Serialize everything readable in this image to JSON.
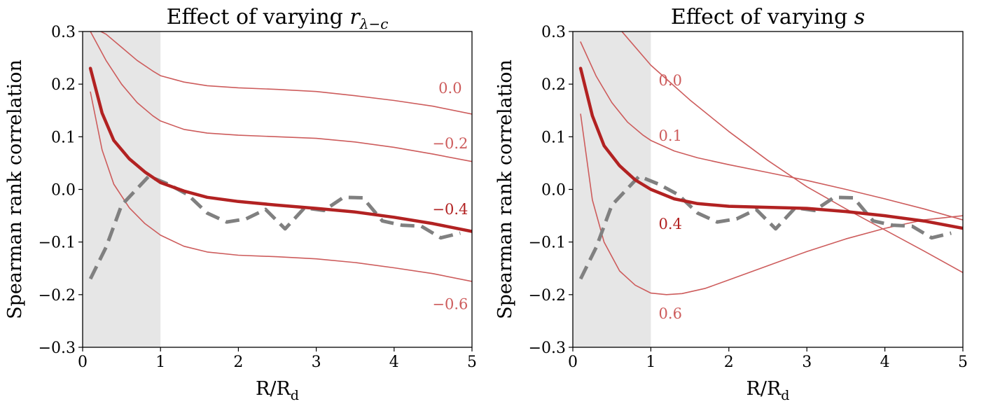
{
  "chart_data": [
    {
      "type": "line",
      "title": "Effect of varying r_{λ−c}",
      "title_main": "Effect of varying ",
      "title_var": "r",
      "title_sub": "λ−c",
      "xlabel": "R/R_d",
      "xlabel_main": "R/R",
      "xlabel_sub": "d",
      "ylabel": "Spearman rank correlation",
      "xlim": [
        0,
        5
      ],
      "ylim": [
        -0.3,
        0.3
      ],
      "xticks": [
        "0",
        "1",
        "2",
        "3",
        "4",
        "5"
      ],
      "yticks": [
        "0.3",
        "0.2",
        "0.1",
        "0.0",
        "−0.1",
        "−0.2",
        "−0.3"
      ],
      "shaded_region": [
        0,
        1
      ],
      "grid": false,
      "colors": {
        "thin": "#cd5c5c",
        "thick": "#b22222",
        "dashed": "#808080",
        "shade": "#e6e6e6"
      },
      "series": [
        {
          "label": "0.0",
          "label_pos": [
            4.72,
            0.19
          ],
          "style": "thin",
          "points": [
            [
              0.1,
              0.31
            ],
            [
              0.3,
              0.295
            ],
            [
              0.5,
              0.27
            ],
            [
              0.7,
              0.245
            ],
            [
              0.9,
              0.225
            ],
            [
              1.0,
              0.216
            ],
            [
              1.3,
              0.204
            ],
            [
              1.6,
              0.197
            ],
            [
              2.0,
              0.193
            ],
            [
              2.5,
              0.19
            ],
            [
              3.0,
              0.186
            ],
            [
              3.5,
              0.178
            ],
            [
              4.0,
              0.169
            ],
            [
              4.5,
              0.158
            ],
            [
              5.0,
              0.143
            ]
          ]
        },
        {
          "label": "−0.2",
          "label_pos": [
            4.72,
            0.085
          ],
          "style": "thin",
          "points": [
            [
              0.1,
              0.3
            ],
            [
              0.3,
              0.245
            ],
            [
              0.5,
              0.2
            ],
            [
              0.7,
              0.165
            ],
            [
              0.9,
              0.14
            ],
            [
              1.0,
              0.13
            ],
            [
              1.3,
              0.114
            ],
            [
              1.6,
              0.107
            ],
            [
              2.0,
              0.103
            ],
            [
              2.5,
              0.1
            ],
            [
              3.0,
              0.097
            ],
            [
              3.5,
              0.09
            ],
            [
              4.0,
              0.08
            ],
            [
              4.5,
              0.067
            ],
            [
              5.0,
              0.053
            ]
          ]
        },
        {
          "label": "−0.4",
          "label_pos": [
            4.72,
            -0.04
          ],
          "style": "thick",
          "points": [
            [
              0.1,
              0.23
            ],
            [
              0.25,
              0.145
            ],
            [
              0.4,
              0.093
            ],
            [
              0.6,
              0.058
            ],
            [
              0.8,
              0.033
            ],
            [
              1.0,
              0.013
            ],
            [
              1.3,
              -0.003
            ],
            [
              1.6,
              -0.015
            ],
            [
              2.0,
              -0.023
            ],
            [
              2.5,
              -0.03
            ],
            [
              3.0,
              -0.036
            ],
            [
              3.5,
              -0.043
            ],
            [
              4.0,
              -0.053
            ],
            [
              4.5,
              -0.065
            ],
            [
              5.0,
              -0.08
            ]
          ]
        },
        {
          "label": "−0.6",
          "label_pos": [
            4.72,
            -0.22
          ],
          "style": "thin",
          "points": [
            [
              0.1,
              0.185
            ],
            [
              0.25,
              0.075
            ],
            [
              0.4,
              0.01
            ],
            [
              0.6,
              -0.035
            ],
            [
              0.8,
              -0.065
            ],
            [
              1.0,
              -0.087
            ],
            [
              1.3,
              -0.108
            ],
            [
              1.6,
              -0.119
            ],
            [
              2.0,
              -0.125
            ],
            [
              2.5,
              -0.128
            ],
            [
              3.0,
              -0.132
            ],
            [
              3.5,
              -0.139
            ],
            [
              4.0,
              -0.149
            ],
            [
              4.5,
              -0.16
            ],
            [
              5.0,
              -0.175
            ]
          ]
        },
        {
          "label": "",
          "style": "dashed",
          "points": [
            [
              0.1,
              -0.17
            ],
            [
              0.3,
              -0.11
            ],
            [
              0.5,
              -0.03
            ],
            [
              0.85,
              0.025
            ],
            [
              1.1,
              0.01
            ],
            [
              1.35,
              -0.01
            ],
            [
              1.6,
              -0.045
            ],
            [
              1.85,
              -0.062
            ],
            [
              2.1,
              -0.056
            ],
            [
              2.35,
              -0.038
            ],
            [
              2.6,
              -0.075
            ],
            [
              2.85,
              -0.035
            ],
            [
              3.1,
              -0.04
            ],
            [
              3.35,
              -0.015
            ],
            [
              3.6,
              -0.016
            ],
            [
              3.85,
              -0.06
            ],
            [
              4.1,
              -0.068
            ],
            [
              4.35,
              -0.07
            ],
            [
              4.6,
              -0.092
            ],
            [
              4.85,
              -0.083
            ]
          ]
        }
      ]
    },
    {
      "type": "line",
      "title": "Effect of varying s",
      "title_main": "Effect of varying ",
      "title_var": "s",
      "title_sub": "",
      "xlabel": "R/R_d",
      "xlabel_main": "R/R",
      "xlabel_sub": "d",
      "ylabel": "Spearman rank correlation",
      "xlim": [
        0,
        5
      ],
      "ylim": [
        -0.3,
        0.3
      ],
      "xticks": [
        "0",
        "1",
        "2",
        "3",
        "4",
        "5"
      ],
      "yticks": [
        "0.3",
        "0.2",
        "0.1",
        "0.0",
        "−0.1",
        "−0.2",
        "−0.3"
      ],
      "shaded_region": [
        0,
        1
      ],
      "grid": false,
      "colors": {
        "thin": "#cd5c5c",
        "thick": "#b22222",
        "dashed": "#808080",
        "shade": "#e6e6e6"
      },
      "series": [
        {
          "label": "0.0",
          "label_pos": [
            1.1,
            0.205
          ],
          "style": "thin",
          "points": [
            [
              0.6,
              0.305
            ],
            [
              1.0,
              0.236
            ],
            [
              1.5,
              0.17
            ],
            [
              2.0,
              0.11
            ],
            [
              2.5,
              0.055
            ],
            [
              3.0,
              0.005
            ],
            [
              3.5,
              -0.037
            ],
            [
              4.0,
              -0.077
            ],
            [
              4.5,
              -0.117
            ],
            [
              5.0,
              -0.158
            ]
          ]
        },
        {
          "label": "0.1",
          "label_pos": [
            1.1,
            0.1
          ],
          "style": "thin",
          "points": [
            [
              0.1,
              0.28
            ],
            [
              0.3,
              0.215
            ],
            [
              0.5,
              0.165
            ],
            [
              0.7,
              0.128
            ],
            [
              0.9,
              0.103
            ],
            [
              1.0,
              0.093
            ],
            [
              1.3,
              0.073
            ],
            [
              1.6,
              0.06
            ],
            [
              2.0,
              0.047
            ],
            [
              2.5,
              0.032
            ],
            [
              3.0,
              0.017
            ],
            [
              3.5,
              0.0
            ],
            [
              4.0,
              -0.018
            ],
            [
              4.5,
              -0.037
            ],
            [
              5.0,
              -0.058
            ]
          ]
        },
        {
          "label": "0.4",
          "label_pos": [
            1.1,
            -0.068
          ],
          "style": "thick",
          "points": [
            [
              0.1,
              0.23
            ],
            [
              0.25,
              0.14
            ],
            [
              0.4,
              0.083
            ],
            [
              0.6,
              0.045
            ],
            [
              0.8,
              0.018
            ],
            [
              1.0,
              0.0
            ],
            [
              1.3,
              -0.018
            ],
            [
              1.6,
              -0.027
            ],
            [
              2.0,
              -0.032
            ],
            [
              2.5,
              -0.034
            ],
            [
              3.0,
              -0.036
            ],
            [
              3.5,
              -0.042
            ],
            [
              4.0,
              -0.05
            ],
            [
              4.5,
              -0.06
            ],
            [
              5.0,
              -0.074
            ]
          ]
        },
        {
          "label": "0.6",
          "label_pos": [
            1.1,
            -0.238
          ],
          "style": "thin",
          "points": [
            [
              0.1,
              0.143
            ],
            [
              0.25,
              -0.02
            ],
            [
              0.4,
              -0.1
            ],
            [
              0.6,
              -0.155
            ],
            [
              0.8,
              -0.182
            ],
            [
              1.0,
              -0.197
            ],
            [
              1.2,
              -0.2
            ],
            [
              1.4,
              -0.198
            ],
            [
              1.7,
              -0.188
            ],
            [
              2.0,
              -0.172
            ],
            [
              2.5,
              -0.145
            ],
            [
              3.0,
              -0.118
            ],
            [
              3.5,
              -0.094
            ],
            [
              4.0,
              -0.074
            ],
            [
              4.5,
              -0.058
            ],
            [
              5.0,
              -0.05
            ]
          ]
        },
        {
          "label": "",
          "style": "dashed",
          "points": [
            [
              0.1,
              -0.17
            ],
            [
              0.3,
              -0.11
            ],
            [
              0.5,
              -0.03
            ],
            [
              0.85,
              0.025
            ],
            [
              1.1,
              0.01
            ],
            [
              1.35,
              -0.01
            ],
            [
              1.6,
              -0.045
            ],
            [
              1.85,
              -0.062
            ],
            [
              2.1,
              -0.056
            ],
            [
              2.35,
              -0.038
            ],
            [
              2.6,
              -0.075
            ],
            [
              2.85,
              -0.035
            ],
            [
              3.1,
              -0.04
            ],
            [
              3.35,
              -0.015
            ],
            [
              3.6,
              -0.016
            ],
            [
              3.85,
              -0.06
            ],
            [
              4.1,
              -0.068
            ],
            [
              4.35,
              -0.07
            ],
            [
              4.6,
              -0.092
            ],
            [
              4.85,
              -0.083
            ]
          ]
        }
      ]
    }
  ]
}
